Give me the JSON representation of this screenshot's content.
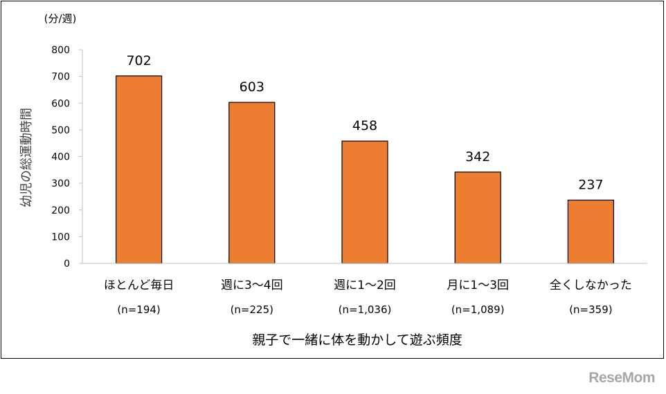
{
  "chart_data": {
    "type": "bar",
    "title": "",
    "unit_label": "(分/週)",
    "ylabel": "幼児の総運動時間",
    "xlabel": "親子で一緒に体を動かして遊ぶ頻度",
    "ylim": [
      0,
      800
    ],
    "yticks": [
      0,
      100,
      200,
      300,
      400,
      500,
      600,
      700,
      800
    ],
    "grid": false,
    "categories": [
      {
        "label": "ほとんど毎日",
        "n": "(n=194)"
      },
      {
        "label": "週に3～4回",
        "n": "(n=225)"
      },
      {
        "label": "週に1～2回",
        "n": "(n=1,036)"
      },
      {
        "label": "月に1～3回",
        "n": "(n=1,089)"
      },
      {
        "label": "全くしなかった",
        "n": "(n=359)"
      }
    ],
    "values": [
      702,
      603,
      458,
      342,
      237
    ],
    "bar_color": "#ED7D31"
  },
  "watermark": "ReseMom"
}
